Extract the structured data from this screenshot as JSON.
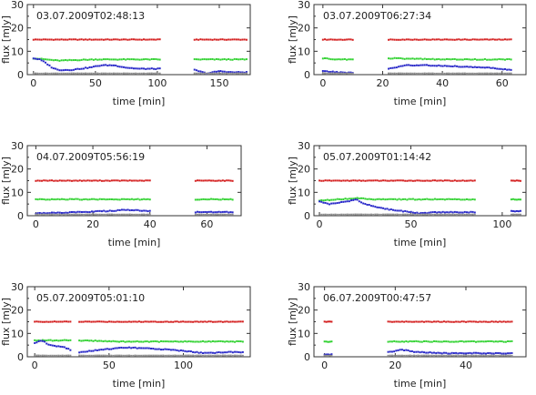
{
  "figure": {
    "ylabel": "flux [mJy]",
    "xlabel": "time [min]",
    "colors": {
      "red": "#d42020",
      "green": "#32d232",
      "blue": "#2828c8",
      "grey": "#909090",
      "frame": "#333333"
    }
  },
  "chart_data": [
    {
      "type": "scatter",
      "title": "03.07.2009T02:48:13",
      "xlabel": "time [min]",
      "ylabel": "flux [mJy]",
      "xlim": [
        -5,
        175
      ],
      "ylim": [
        0,
        30
      ],
      "xticks": [
        0,
        50,
        100,
        150
      ],
      "yticks": [
        0,
        10,
        20,
        30
      ],
      "segments": [
        [
          0,
          102
        ],
        [
          130,
          172
        ]
      ],
      "series": [
        {
          "color": "red",
          "values": [
            [
              0,
              15
            ],
            [
              172,
              15
            ]
          ]
        },
        {
          "color": "green",
          "values": [
            [
              0,
              7
            ],
            [
              20,
              6
            ],
            [
              50,
              6.5
            ],
            [
              80,
              6.5
            ],
            [
              102,
              6.5
            ],
            [
              130,
              6.5
            ],
            [
              172,
              6.5
            ]
          ]
        },
        {
          "color": "blue",
          "values": [
            [
              0,
              7
            ],
            [
              5,
              6.5
            ],
            [
              10,
              5
            ],
            [
              15,
              3
            ],
            [
              20,
              2
            ],
            [
              30,
              2
            ],
            [
              45,
              3
            ],
            [
              55,
              4
            ],
            [
              65,
              4
            ],
            [
              75,
              3
            ],
            [
              85,
              2.5
            ],
            [
              95,
              2.5
            ],
            [
              102,
              2.5
            ],
            [
              130,
              2
            ],
            [
              140,
              0.5
            ],
            [
              150,
              1.5
            ],
            [
              160,
              1
            ],
            [
              172,
              1
            ]
          ]
        },
        {
          "color": "grey",
          "values": [
            [
              0,
              0.5
            ],
            [
              172,
              0.5
            ]
          ]
        }
      ]
    },
    {
      "type": "scatter",
      "title": "03.07.2009T06:27:34",
      "xlabel": "time [min]",
      "ylabel": "flux [mJy]",
      "xlim": [
        -3,
        68
      ],
      "ylim": [
        0,
        30
      ],
      "xticks": [
        0,
        20,
        40,
        60
      ],
      "yticks": [
        0,
        10,
        20,
        30
      ],
      "segments": [
        [
          0,
          10
        ],
        [
          22,
          63
        ]
      ],
      "series": [
        {
          "color": "red",
          "values": [
            [
              0,
              15
            ],
            [
              63,
              15
            ]
          ]
        },
        {
          "color": "green",
          "values": [
            [
              0,
              7
            ],
            [
              5,
              6.5
            ],
            [
              10,
              6.5
            ],
            [
              22,
              7
            ],
            [
              40,
              6.5
            ],
            [
              63,
              6.5
            ]
          ]
        },
        {
          "color": "blue",
          "values": [
            [
              0,
              1.5
            ],
            [
              5,
              1
            ],
            [
              10,
              0.8
            ],
            [
              22,
              2.5
            ],
            [
              28,
              4
            ],
            [
              35,
              4
            ],
            [
              45,
              3.5
            ],
            [
              55,
              3
            ],
            [
              63,
              2
            ]
          ]
        },
        {
          "color": "grey",
          "values": [
            [
              0,
              0.5
            ],
            [
              63,
              0.5
            ]
          ]
        }
      ]
    },
    {
      "type": "scatter",
      "title": "04.07.2009T05:56:19",
      "xlabel": "time [min]",
      "ylabel": "flux [mJy]",
      "xlim": [
        -3,
        72
      ],
      "ylim": [
        0,
        30
      ],
      "xticks": [
        0,
        20,
        40,
        60
      ],
      "yticks": [
        0,
        10,
        20,
        30
      ],
      "segments": [
        [
          0,
          40
        ],
        [
          56,
          69
        ]
      ],
      "series": [
        {
          "color": "red",
          "values": [
            [
              0,
              15
            ],
            [
              40,
              15
            ],
            [
              56,
              15
            ],
            [
              69,
              15
            ]
          ]
        },
        {
          "color": "green",
          "values": [
            [
              0,
              7
            ],
            [
              40,
              7
            ],
            [
              56,
              7
            ],
            [
              69,
              7
            ]
          ]
        },
        {
          "color": "blue",
          "values": [
            [
              0,
              1
            ],
            [
              15,
              1.5
            ],
            [
              25,
              2
            ],
            [
              32,
              2.5
            ],
            [
              40,
              2
            ],
            [
              56,
              1.5
            ],
            [
              69,
              1.5
            ]
          ]
        },
        {
          "color": "grey",
          "values": [
            [
              0,
              0.5
            ],
            [
              69,
              0.5
            ]
          ]
        }
      ]
    },
    {
      "type": "scatter",
      "title": "05.07.2009T01:14:42",
      "xlabel": "time [min]",
      "ylabel": "flux [mJy]",
      "xlim": [
        -3,
        113
      ],
      "ylim": [
        0,
        30
      ],
      "xticks": [
        0,
        50,
        100
      ],
      "yticks": [
        0,
        10,
        20,
        30
      ],
      "segments": [
        [
          0,
          85
        ],
        [
          105,
          110
        ]
      ],
      "series": [
        {
          "color": "red",
          "values": [
            [
              0,
              15
            ],
            [
              85,
              15
            ],
            [
              105,
              15
            ],
            [
              110,
              15
            ]
          ]
        },
        {
          "color": "green",
          "values": [
            [
              0,
              6.5
            ],
            [
              10,
              7
            ],
            [
              20,
              7.5
            ],
            [
              30,
              7
            ],
            [
              85,
              7
            ],
            [
              105,
              7
            ],
            [
              110,
              7
            ]
          ]
        },
        {
          "color": "blue",
          "values": [
            [
              0,
              6
            ],
            [
              5,
              5
            ],
            [
              10,
              5.5
            ],
            [
              15,
              6
            ],
            [
              20,
              7
            ],
            [
              25,
              5
            ],
            [
              30,
              4
            ],
            [
              35,
              3
            ],
            [
              45,
              2
            ],
            [
              55,
              1
            ],
            [
              65,
              1.5
            ],
            [
              85,
              1.5
            ],
            [
              105,
              2
            ],
            [
              110,
              2
            ]
          ]
        },
        {
          "color": "grey",
          "values": [
            [
              0,
              0.5
            ],
            [
              110,
              0.5
            ]
          ]
        }
      ]
    },
    {
      "type": "scatter",
      "title": "05.07.2009T05:01:10",
      "xlabel": "time [min]",
      "ylabel": "flux [mJy]",
      "xlim": [
        -5,
        145
      ],
      "ylim": [
        0,
        30
      ],
      "xticks": [
        0,
        50,
        100
      ],
      "yticks": [
        0,
        10,
        20,
        30
      ],
      "segments": [
        [
          0,
          24
        ],
        [
          30,
          140
        ]
      ],
      "series": [
        {
          "color": "red",
          "values": [
            [
              0,
              15
            ],
            [
              140,
              15
            ]
          ]
        },
        {
          "color": "green",
          "values": [
            [
              0,
              7
            ],
            [
              24,
              7
            ],
            [
              30,
              7
            ],
            [
              60,
              6.5
            ],
            [
              100,
              6.5
            ],
            [
              140,
              6.5
            ]
          ]
        },
        {
          "color": "blue",
          "values": [
            [
              0,
              6
            ],
            [
              5,
              7
            ],
            [
              10,
              5
            ],
            [
              20,
              4
            ],
            [
              24,
              3
            ],
            [
              30,
              2
            ],
            [
              45,
              3
            ],
            [
              60,
              4
            ],
            [
              80,
              3.5
            ],
            [
              100,
              2.5
            ],
            [
              115,
              1.5
            ],
            [
              130,
              2
            ],
            [
              140,
              2
            ]
          ]
        },
        {
          "color": "grey",
          "values": [
            [
              0,
              0.5
            ],
            [
              140,
              0.5
            ]
          ]
        }
      ]
    },
    {
      "type": "scatter",
      "title": "06.07.2009T00:47:57",
      "xlabel": "time [min]",
      "ylabel": "flux [mJy]",
      "xlim": [
        -3,
        57
      ],
      "ylim": [
        0,
        30
      ],
      "xticks": [
        0,
        20,
        40
      ],
      "yticks": [
        0,
        10,
        20,
        30
      ],
      "segments": [
        [
          0,
          2
        ],
        [
          18,
          53
        ]
      ],
      "series": [
        {
          "color": "red",
          "values": [
            [
              0,
              15
            ],
            [
              2,
              15
            ],
            [
              18,
              15
            ],
            [
              53,
              15
            ]
          ]
        },
        {
          "color": "green",
          "values": [
            [
              0,
              6.5
            ],
            [
              2,
              6.5
            ],
            [
              18,
              6.5
            ],
            [
              53,
              6.5
            ]
          ]
        },
        {
          "color": "blue",
          "values": [
            [
              0,
              1
            ],
            [
              2,
              1
            ],
            [
              18,
              2
            ],
            [
              22,
              3
            ],
            [
              26,
              2
            ],
            [
              35,
              1.5
            ],
            [
              45,
              1.5
            ],
            [
              53,
              1.5
            ]
          ]
        },
        {
          "color": "grey",
          "values": [
            [
              0,
              0.5
            ],
            [
              53,
              0.5
            ]
          ]
        }
      ]
    }
  ]
}
